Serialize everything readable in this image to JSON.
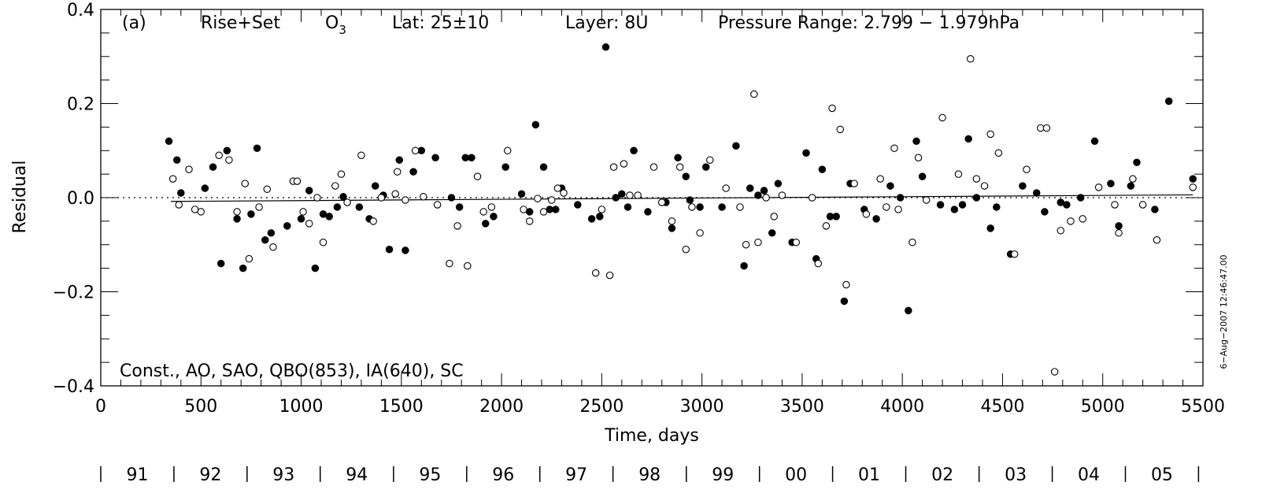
{
  "chart_data": {
    "type": "scatter",
    "title_panel": "(a)",
    "title_mode": "Rise+Set",
    "title_species_main": "O",
    "title_species_sub": "3",
    "title_lat": "Lat: 25±10",
    "title_layer": "Layer: 8U",
    "title_pressure": "Pressure Range: 2.799 − 1.979hPa",
    "model_label": "Const., AO, SAO, QBO(853), IA(640), SC",
    "xlabel": "Time, days",
    "ylabel": "Residual",
    "timestamp": "6−Aug−2007 12:46:47.00",
    "xlim": [
      0,
      5500
    ],
    "ylim": [
      -0.4,
      0.4
    ],
    "x_ticks": [
      0,
      500,
      1000,
      1500,
      2000,
      2500,
      3000,
      3500,
      4000,
      4500,
      5000,
      5500
    ],
    "x_tick_labels": [
      "0",
      "500",
      "1000",
      "1500",
      "2000",
      "2500",
      "3000",
      "3500",
      "4000",
      "4500",
      "5000",
      "5500"
    ],
    "y_ticks": [
      -0.4,
      -0.2,
      0.0,
      0.2,
      0.4
    ],
    "y_tick_labels": [
      "−0.4",
      "−0.2",
      "0.0",
      "0.2",
      "0.4"
    ],
    "year_labels": [
      "91",
      "92",
      "93",
      "94",
      "95",
      "96",
      "97",
      "98",
      "99",
      "00",
      "01",
      "02",
      "03",
      "04",
      "05"
    ],
    "year_boundaries": [
      0,
      365,
      730,
      1095,
      1461,
      1826,
      2191,
      2556,
      2922,
      3287,
      3652,
      4017,
      4383,
      4748,
      5113,
      5478
    ],
    "zero_line": [
      [
        0,
        0.0
      ],
      [
        5500,
        0.0
      ]
    ],
    "trend_line": [
      [
        350,
        -0.008
      ],
      [
        5450,
        0.006
      ]
    ],
    "series": [
      {
        "name": "filled",
        "marker": "filled-circle",
        "points": [
          [
            340,
            0.12
          ],
          [
            380,
            0.08
          ],
          [
            400,
            0.01
          ],
          [
            520,
            0.02
          ],
          [
            560,
            0.065
          ],
          [
            600,
            -0.14
          ],
          [
            630,
            0.1
          ],
          [
            680,
            -0.045
          ],
          [
            710,
            -0.15
          ],
          [
            750,
            -0.035
          ],
          [
            780,
            0.105
          ],
          [
            820,
            -0.09
          ],
          [
            850,
            -0.075
          ],
          [
            930,
            -0.06
          ],
          [
            1000,
            -0.045
          ],
          [
            1040,
            0.015
          ],
          [
            1070,
            -0.15
          ],
          [
            1110,
            -0.035
          ],
          [
            1140,
            -0.04
          ],
          [
            1180,
            -0.02
          ],
          [
            1210,
            0.002
          ],
          [
            1290,
            -0.02
          ],
          [
            1340,
            -0.045
          ],
          [
            1370,
            0.025
          ],
          [
            1410,
            0.005
          ],
          [
            1440,
            -0.11
          ],
          [
            1490,
            0.08
          ],
          [
            1520,
            -0.112
          ],
          [
            1560,
            0.055
          ],
          [
            1600,
            0.1
          ],
          [
            1670,
            0.085
          ],
          [
            1750,
            0.0
          ],
          [
            1790,
            -0.02
          ],
          [
            1820,
            0.085
          ],
          [
            1850,
            0.085
          ],
          [
            1920,
            -0.055
          ],
          [
            1960,
            -0.04
          ],
          [
            2020,
            0.065
          ],
          [
            2100,
            0.008
          ],
          [
            2140,
            -0.03
          ],
          [
            2170,
            0.155
          ],
          [
            2210,
            0.065
          ],
          [
            2240,
            -0.025
          ],
          [
            2270,
            -0.025
          ],
          [
            2300,
            0.02
          ],
          [
            2380,
            -0.015
          ],
          [
            2450,
            -0.045
          ],
          [
            2490,
            -0.04
          ],
          [
            2520,
            0.32
          ],
          [
            2570,
            0.0
          ],
          [
            2600,
            0.008
          ],
          [
            2630,
            -0.02
          ],
          [
            2660,
            0.1
          ],
          [
            2730,
            -0.03
          ],
          [
            2820,
            -0.01
          ],
          [
            2850,
            -0.065
          ],
          [
            2880,
            0.085
          ],
          [
            2920,
            0.045
          ],
          [
            2940,
            -0.005
          ],
          [
            2990,
            -0.02
          ],
          [
            3020,
            0.065
          ],
          [
            3100,
            -0.02
          ],
          [
            3170,
            0.11
          ],
          [
            3210,
            -0.145
          ],
          [
            3240,
            0.02
          ],
          [
            3280,
            0.005
          ],
          [
            3310,
            0.015
          ],
          [
            3350,
            -0.075
          ],
          [
            3380,
            0.03
          ],
          [
            3450,
            -0.095
          ],
          [
            3520,
            0.095
          ],
          [
            3570,
            -0.13
          ],
          [
            3600,
            0.06
          ],
          [
            3640,
            -0.04
          ],
          [
            3670,
            -0.04
          ],
          [
            3710,
            -0.22
          ],
          [
            3740,
            0.03
          ],
          [
            3810,
            -0.025
          ],
          [
            3870,
            -0.045
          ],
          [
            3940,
            0.025
          ],
          [
            3990,
            0.0
          ],
          [
            4030,
            -0.24
          ],
          [
            4070,
            0.12
          ],
          [
            4100,
            0.045
          ],
          [
            4190,
            -0.015
          ],
          [
            4260,
            -0.025
          ],
          [
            4300,
            -0.015
          ],
          [
            4330,
            0.125
          ],
          [
            4370,
            0.0
          ],
          [
            4440,
            -0.065
          ],
          [
            4470,
            -0.02
          ],
          [
            4540,
            -0.12
          ],
          [
            4600,
            0.025
          ],
          [
            4670,
            0.01
          ],
          [
            4710,
            -0.03
          ],
          [
            4790,
            -0.01
          ],
          [
            4820,
            -0.015
          ],
          [
            4890,
            0.0
          ],
          [
            4960,
            0.12
          ],
          [
            5040,
            0.03
          ],
          [
            5080,
            -0.06
          ],
          [
            5140,
            0.025
          ],
          [
            5170,
            0.075
          ],
          [
            5260,
            -0.025
          ],
          [
            5330,
            0.205
          ],
          [
            5450,
            0.04
          ]
        ]
      },
      {
        "name": "open",
        "marker": "open-circle",
        "points": [
          [
            360,
            0.04
          ],
          [
            390,
            -0.015
          ],
          [
            440,
            0.06
          ],
          [
            470,
            -0.025
          ],
          [
            500,
            -0.03
          ],
          [
            590,
            0.09
          ],
          [
            640,
            0.08
          ],
          [
            680,
            -0.03
          ],
          [
            720,
            0.03
          ],
          [
            740,
            -0.13
          ],
          [
            790,
            -0.02
          ],
          [
            830,
            0.018
          ],
          [
            860,
            -0.105
          ],
          [
            960,
            0.035
          ],
          [
            980,
            0.035
          ],
          [
            1010,
            -0.03
          ],
          [
            1040,
            -0.055
          ],
          [
            1080,
            0.0
          ],
          [
            1110,
            -0.095
          ],
          [
            1170,
            0.025
          ],
          [
            1200,
            0.05
          ],
          [
            1230,
            -0.01
          ],
          [
            1300,
            0.09
          ],
          [
            1360,
            -0.05
          ],
          [
            1400,
            0.0
          ],
          [
            1470,
            0.008
          ],
          [
            1480,
            0.055
          ],
          [
            1520,
            -0.005
          ],
          [
            1570,
            0.1
          ],
          [
            1610,
            0.002
          ],
          [
            1680,
            -0.015
          ],
          [
            1740,
            -0.14
          ],
          [
            1780,
            -0.06
          ],
          [
            1830,
            -0.145
          ],
          [
            1880,
            0.045
          ],
          [
            1910,
            -0.03
          ],
          [
            1950,
            -0.02
          ],
          [
            2030,
            0.1
          ],
          [
            2110,
            -0.025
          ],
          [
            2140,
            -0.05
          ],
          [
            2180,
            -0.002
          ],
          [
            2210,
            -0.03
          ],
          [
            2250,
            -0.005
          ],
          [
            2280,
            0.02
          ],
          [
            2310,
            0.01
          ],
          [
            2470,
            -0.16
          ],
          [
            2500,
            -0.025
          ],
          [
            2540,
            -0.165
          ],
          [
            2560,
            0.065
          ],
          [
            2610,
            0.072
          ],
          [
            2640,
            0.005
          ],
          [
            2680,
            0.005
          ],
          [
            2760,
            0.065
          ],
          [
            2800,
            -0.01
          ],
          [
            2850,
            -0.05
          ],
          [
            2890,
            0.065
          ],
          [
            2920,
            -0.11
          ],
          [
            2950,
            -0.02
          ],
          [
            2990,
            -0.075
          ],
          [
            3040,
            0.08
          ],
          [
            3120,
            0.02
          ],
          [
            3190,
            -0.02
          ],
          [
            3220,
            -0.1
          ],
          [
            3260,
            0.22
          ],
          [
            3280,
            -0.095
          ],
          [
            3320,
            0.0
          ],
          [
            3360,
            -0.04
          ],
          [
            3400,
            0.005
          ],
          [
            3470,
            -0.095
          ],
          [
            3550,
            0.0
          ],
          [
            3580,
            -0.14
          ],
          [
            3620,
            -0.06
          ],
          [
            3650,
            0.19
          ],
          [
            3690,
            0.145
          ],
          [
            3720,
            -0.185
          ],
          [
            3760,
            0.03
          ],
          [
            3820,
            -0.035
          ],
          [
            3890,
            0.04
          ],
          [
            3920,
            -0.02
          ],
          [
            3960,
            0.105
          ],
          [
            3980,
            -0.025
          ],
          [
            4050,
            -0.095
          ],
          [
            4080,
            0.085
          ],
          [
            4120,
            -0.005
          ],
          [
            4200,
            0.17
          ],
          [
            4280,
            0.05
          ],
          [
            4340,
            0.295
          ],
          [
            4370,
            0.04
          ],
          [
            4410,
            0.025
          ],
          [
            4440,
            0.135
          ],
          [
            4480,
            0.095
          ],
          [
            4560,
            -0.12
          ],
          [
            4620,
            0.06
          ],
          [
            4690,
            0.148
          ],
          [
            4720,
            0.148
          ],
          [
            4760,
            -0.37
          ],
          [
            4790,
            -0.07
          ],
          [
            4840,
            -0.05
          ],
          [
            4900,
            -0.045
          ],
          [
            4980,
            0.022
          ],
          [
            5060,
            -0.015
          ],
          [
            5080,
            -0.075
          ],
          [
            5150,
            0.04
          ],
          [
            5200,
            -0.015
          ],
          [
            5270,
            -0.09
          ],
          [
            5450,
            0.022
          ]
        ]
      }
    ]
  }
}
